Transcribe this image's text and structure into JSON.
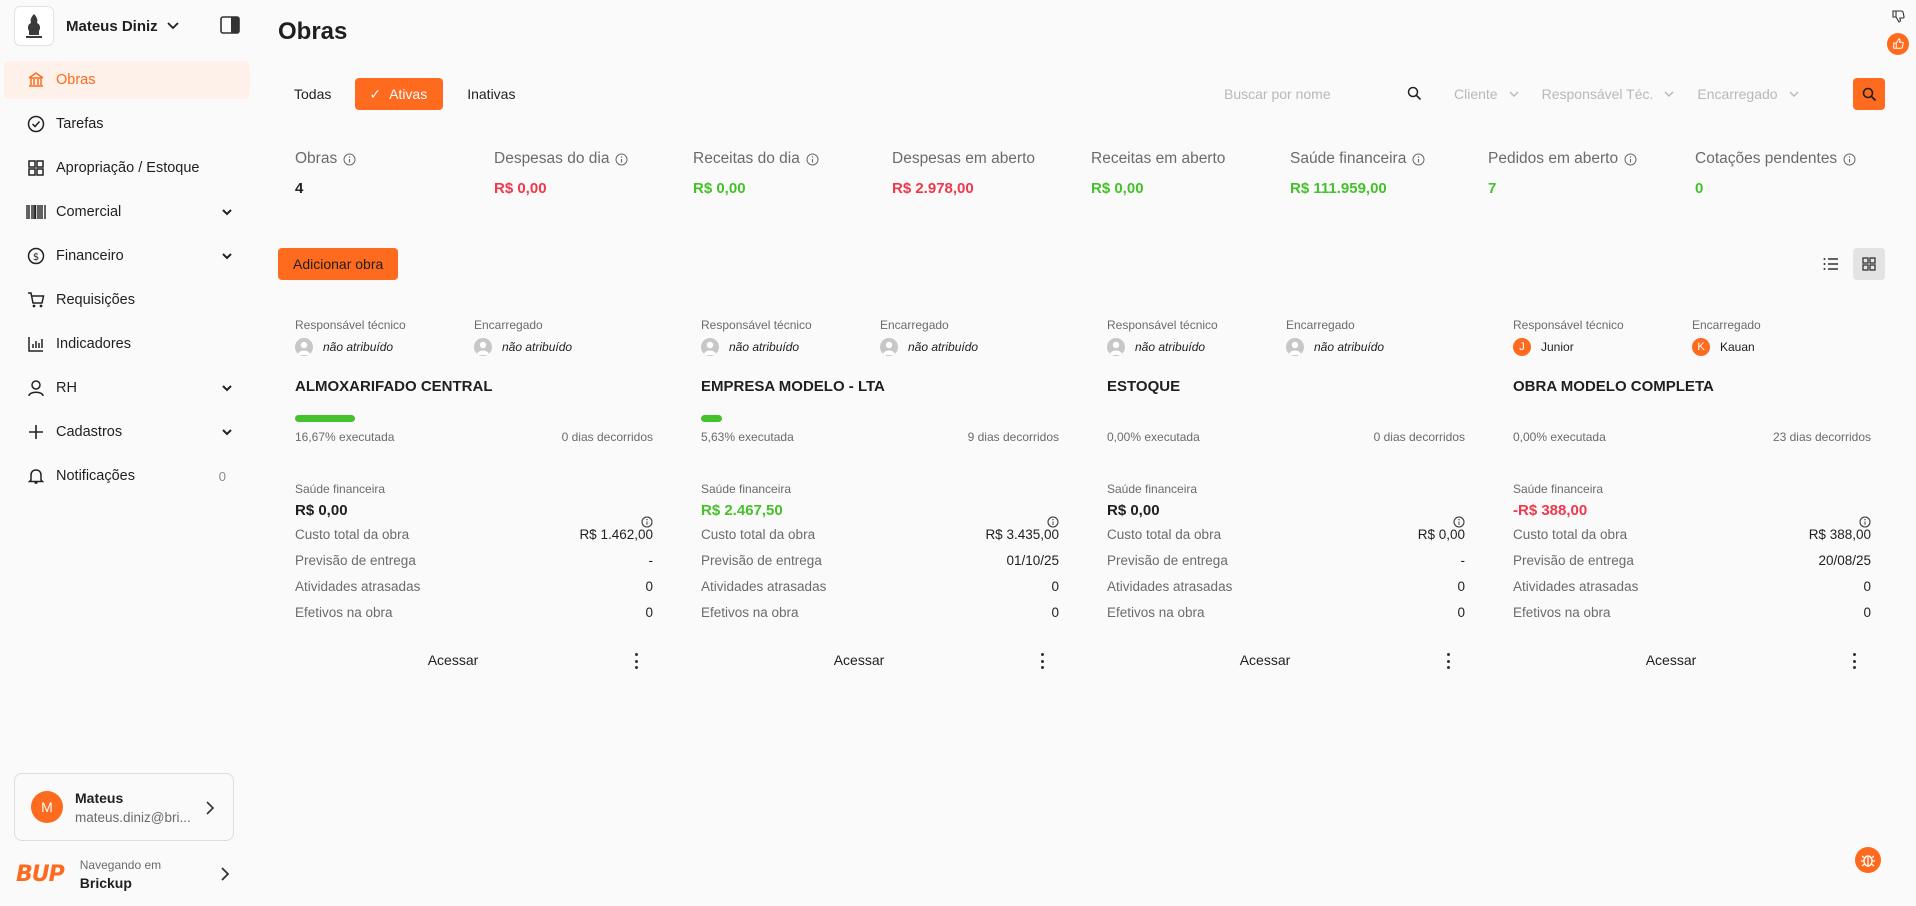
{
  "workspace": {
    "name": "Mateus Diniz",
    "logo_icon": "company-logo"
  },
  "sidebar": {
    "items": [
      {
        "label": "Obras",
        "icon": "building-icon",
        "active": true
      },
      {
        "label": "Tarefas",
        "icon": "check-circle-icon"
      },
      {
        "label": "Apropriação / Estoque",
        "icon": "grid-icon"
      },
      {
        "label": "Comercial",
        "icon": "barcode-icon",
        "expandable": true
      },
      {
        "label": "Financeiro",
        "icon": "dollar-circle-icon",
        "expandable": true
      },
      {
        "label": "Requisições",
        "icon": "cart-icon"
      },
      {
        "label": "Indicadores",
        "icon": "bar-chart-icon"
      },
      {
        "label": "RH",
        "icon": "person-icon",
        "expandable": true
      },
      {
        "label": "Cadastros",
        "icon": "plus-icon",
        "expandable": true
      },
      {
        "label": "Notificações",
        "icon": "bell-icon",
        "count": "0"
      }
    ],
    "user": {
      "initial": "M",
      "name": "Mateus",
      "email": "mateus.diniz@bri..."
    },
    "footer": {
      "brand": "BUP",
      "caption": "Navegando em",
      "company": "Brickup"
    }
  },
  "page": {
    "title": "Obras"
  },
  "tabs": [
    {
      "label": "Todas",
      "active": false
    },
    {
      "label": "Ativas",
      "active": true
    },
    {
      "label": "Inativas",
      "active": false
    }
  ],
  "filters": {
    "search_placeholder": "Buscar por nome",
    "cliente": "Cliente",
    "responsavel": "Responsável Téc.",
    "encarregado": "Encarregado"
  },
  "kpis": [
    {
      "label": "Obras",
      "value": "4",
      "info": true,
      "color": "#1f1f1f"
    },
    {
      "label": "Despesas do dia",
      "value": "R$ 0,00",
      "info": true,
      "color": "#f0384b"
    },
    {
      "label": "Receitas do dia",
      "value": "R$ 0,00",
      "info": true,
      "color": "#45c12c"
    },
    {
      "label": "Despesas em aberto",
      "value": "R$ 2.978,00",
      "info": false,
      "color": "#f0384b"
    },
    {
      "label": "Receitas em aberto",
      "value": "R$ 0,00",
      "info": false,
      "color": "#45c12c"
    },
    {
      "label": "Saúde financeira",
      "value": "R$ 111.959,00",
      "info": true,
      "color": "#45c12c"
    },
    {
      "label": "Pedidos em aberto",
      "value": "7",
      "info": true,
      "color": "#45c12c"
    },
    {
      "label": "Cotações pendentes",
      "value": "0",
      "info": true,
      "color": "#45c12c"
    }
  ],
  "actions": {
    "add_label": "Adicionar obra"
  },
  "card_labels": {
    "resp_tecnico": "Responsável técnico",
    "encarregado": "Encarregado",
    "saude": "Saúde financeira",
    "custo": "Custo total da obra",
    "previsao": "Previsão de entrega",
    "atrasadas": "Atividades atrasadas",
    "efetivos": "Efetivos na obra",
    "acessar": "Acessar"
  },
  "cards": [
    {
      "title": "ALMOXARIFADO CENTRAL",
      "resp": {
        "name": "não atribuído",
        "assigned": false
      },
      "enc": {
        "name": "não atribuído",
        "assigned": false
      },
      "progress": 0.1667,
      "executed": "16,67% executada",
      "days": "0 dias decorridos",
      "saude": "R$ 0,00",
      "saude_color": "#1f1f1f",
      "custo": "R$ 1.462,00",
      "previsao": "-",
      "atrasadas": "0",
      "efetivos": "0"
    },
    {
      "title": "EMPRESA MODELO - LTA",
      "resp": {
        "name": "não atribuído",
        "assigned": false
      },
      "enc": {
        "name": "não atribuído",
        "assigned": false
      },
      "progress": 0.0563,
      "executed": "5,63% executada",
      "days": "9 dias decorridos",
      "saude": "R$ 2.467,50",
      "saude_color": "#45c12c",
      "custo": "R$ 3.435,00",
      "previsao": "01/10/25",
      "atrasadas": "0",
      "efetivos": "0"
    },
    {
      "title": "ESTOQUE",
      "resp": {
        "name": "não atribuído",
        "assigned": false
      },
      "enc": {
        "name": "não atribuído",
        "assigned": false
      },
      "progress": 0,
      "executed": "0,00% executada",
      "days": "0 dias decorridos",
      "saude": "R$ 0,00",
      "saude_color": "#1f1f1f",
      "custo": "R$ 0,00",
      "previsao": "-",
      "atrasadas": "0",
      "efetivos": "0"
    },
    {
      "title": "OBRA MODELO COMPLETA",
      "resp": {
        "name": "Junior",
        "initial": "J",
        "assigned": true
      },
      "enc": {
        "name": "Kauan",
        "initial": "K",
        "assigned": true
      },
      "progress": 0,
      "executed": "0,00% executada",
      "days": "23 dias decorridos",
      "saude": "-R$ 388,00",
      "saude_color": "#f0384b",
      "custo": "R$ 388,00",
      "previsao": "20/08/25",
      "atrasadas": "0",
      "efetivos": "0"
    }
  ],
  "colors": {
    "accent": "#fe6a1e",
    "green": "#45c12c",
    "red": "#f0384b"
  }
}
